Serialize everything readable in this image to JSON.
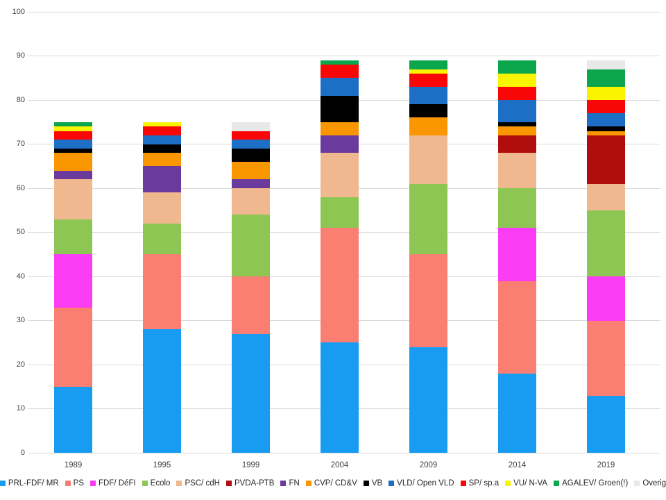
{
  "chart_data": {
    "type": "bar",
    "stacked": true,
    "title": "",
    "xlabel": "",
    "ylabel": "",
    "categories": [
      "1989",
      "1995",
      "1999",
      "2004",
      "2009",
      "2014",
      "2019"
    ],
    "series": [
      {
        "name": "PRL-FDF/ MR",
        "color": "#189CF2",
        "values": [
          15,
          28,
          27,
          25,
          24,
          18,
          13
        ]
      },
      {
        "name": "PS",
        "color": "#FA7E72",
        "values": [
          18,
          17,
          13,
          26,
          21,
          21,
          17
        ]
      },
      {
        "name": "FDF/ DéFI",
        "color": "#FA3DF5",
        "values": [
          12,
          0,
          0,
          0,
          0,
          12,
          10
        ]
      },
      {
        "name": "Ecolo",
        "color": "#8DC653",
        "values": [
          8,
          7,
          14,
          7,
          16,
          9,
          15
        ]
      },
      {
        "name": "PSC/ cdH",
        "color": "#F0B88E",
        "values": [
          9,
          7,
          6,
          10,
          11,
          8,
          6
        ]
      },
      {
        "name": "PVDA-PTB",
        "color": "#B00E0E",
        "values": [
          0,
          0,
          0,
          0,
          0,
          4,
          11
        ]
      },
      {
        "name": "FN",
        "color": "#6B3A9D",
        "values": [
          2,
          6,
          2,
          4,
          0,
          0,
          0
        ]
      },
      {
        "name": "CVP/ CD&V",
        "color": "#FA9600",
        "values": [
          4,
          3,
          4,
          3,
          4,
          2,
          1
        ]
      },
      {
        "name": "VB",
        "color": "#000000",
        "values": [
          1,
          2,
          3,
          6,
          3,
          1,
          1
        ]
      },
      {
        "name": "VLD/ Open VLD",
        "color": "#1C6FC4",
        "values": [
          2,
          2,
          2,
          4,
          4,
          5,
          3
        ]
      },
      {
        "name": "SP/ sp.a",
        "color": "#F90606",
        "values": [
          2,
          2,
          2,
          3,
          3,
          3,
          3
        ]
      },
      {
        "name": "VU/ N-VA",
        "color": "#FBF400",
        "values": [
          1,
          1,
          0,
          0,
          1,
          3,
          3
        ]
      },
      {
        "name": "AGALEV/ Groen(!)",
        "color": "#0CA64D",
        "values": [
          1,
          0,
          0,
          1,
          2,
          3,
          4
        ]
      },
      {
        "name": "Overig",
        "color": "#E9E8E8",
        "values": [
          0,
          0,
          2,
          0,
          0,
          0,
          2
        ]
      }
    ],
    "totals": [
      75,
      75,
      75,
      89,
      89,
      89,
      89
    ],
    "ylim": [
      0,
      100
    ],
    "yticks": [
      0,
      10,
      20,
      30,
      40,
      50,
      60,
      70,
      80,
      90,
      100
    ],
    "grid": "horizontal",
    "gridline_color": "#d9d9d9",
    "legend_position": "bottom",
    "background": "#ffffff"
  }
}
